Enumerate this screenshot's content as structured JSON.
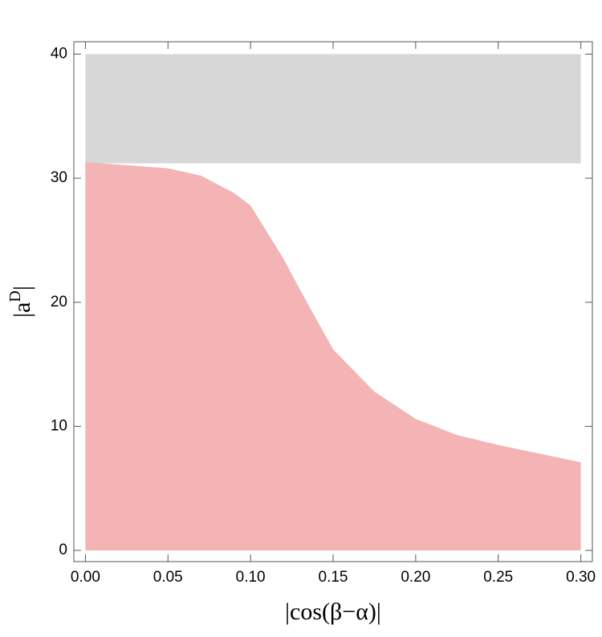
{
  "chart_data": {
    "type": "area",
    "x_label": "|cos(β−α)|",
    "y_label_parts": [
      "|a",
      "D",
      "|"
    ],
    "series": [
      {
        "color": "#f4b3b4",
        "x": [
          0,
          0.02,
          0.05,
          0.07,
          0.09,
          0.1,
          0.12,
          0.13,
          0.15,
          0.175,
          0.2,
          0.225,
          0.25,
          0.275,
          0.3
        ],
        "values": [
          31.3,
          31.1,
          30.8,
          30.2,
          28.8,
          27.8,
          23.5,
          21.0,
          16.2,
          12.8,
          10.6,
          9.3,
          8.5,
          7.8,
          7.1
        ]
      }
    ],
    "bands": [
      {
        "color": "#d7d7d7",
        "x": [
          0,
          0.3
        ],
        "ymin": 31.2,
        "ymax": 40
      }
    ],
    "xlim": [
      -0.007,
      0.307
    ],
    "ylim": [
      -0.9,
      41
    ],
    "xticks": [
      {
        "value": 0,
        "label": "0.00"
      },
      {
        "value": 0.05,
        "label": "0.05"
      },
      {
        "value": 0.1,
        "label": "0.10"
      },
      {
        "value": 0.15,
        "label": "0.15"
      },
      {
        "value": 0.2,
        "label": "0.20"
      },
      {
        "value": 0.25,
        "label": "0.25"
      },
      {
        "value": 0.3,
        "label": "0.30"
      }
    ],
    "yticks": [
      0,
      10,
      20,
      30,
      40
    ]
  }
}
